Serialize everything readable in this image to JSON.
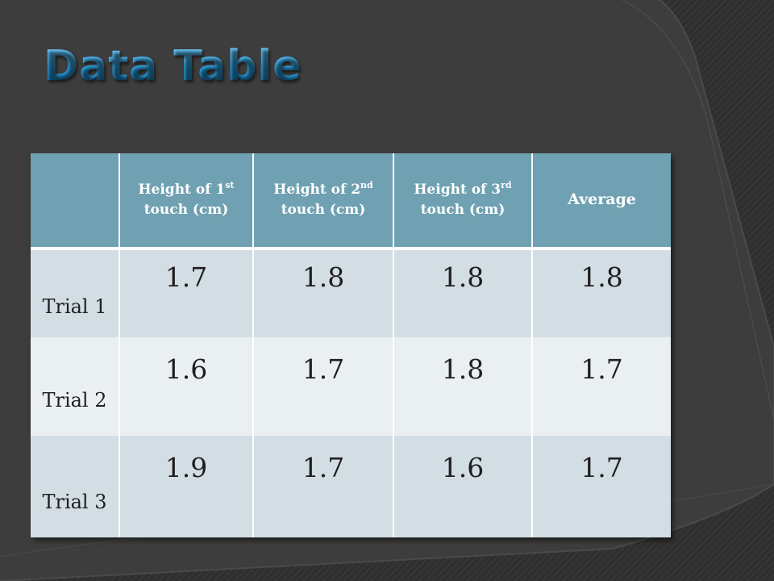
{
  "slide": {
    "title": "Data Table"
  },
  "table": {
    "headers": [
      {
        "text": ""
      },
      {
        "line1_pre": "Height of 1",
        "sup": "st",
        "line2": "touch (cm)"
      },
      {
        "line1_pre": "Height of 2",
        "sup": "nd",
        "line2": "touch (cm)"
      },
      {
        "line1_pre": "Height of 3",
        "sup": "rd",
        "line2": "touch (cm)"
      },
      {
        "text": "Average"
      }
    ],
    "rows": [
      {
        "label": "Trial 1",
        "values": [
          "1.7",
          "1.8",
          "1.8",
          "1.8"
        ]
      },
      {
        "label": "Trial 2",
        "values": [
          "1.6",
          "1.7",
          "1.8",
          "1.7"
        ]
      },
      {
        "label": "Trial 3",
        "values": [
          "1.9",
          "1.7",
          "1.6",
          "1.7"
        ]
      }
    ]
  },
  "colors": {
    "title": "#2c9bd8",
    "header_bg": "#6fa1b2",
    "row_dark": "#d3dde4",
    "row_light": "#eaeff2",
    "background": "#3a3a3a"
  }
}
